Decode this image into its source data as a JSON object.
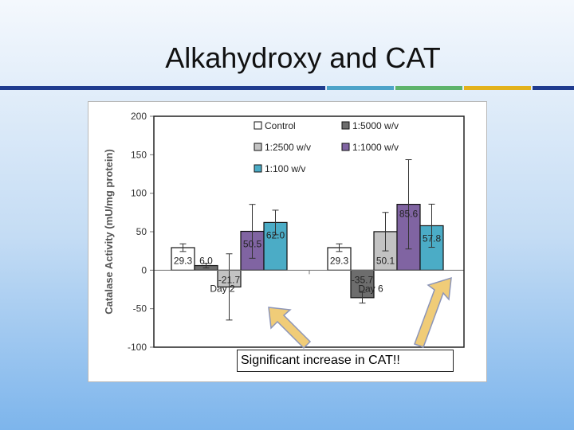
{
  "slide": {
    "title": "Alkahydroxy and CAT",
    "rule_colors": [
      "#1f3b8f",
      "#1f3b8f",
      "#4da3c9",
      "#5db36b",
      "#e3b21c",
      "#1f3b8f"
    ]
  },
  "callout": {
    "text": "Significant increase in  CAT!!",
    "arrow_fill": "#f0cc78",
    "arrow_stroke": "#8c95b8"
  },
  "chart_data": {
    "type": "bar",
    "title": "",
    "xlabel": "",
    "ylabel": "Catalase Activity (mU/mg protein)",
    "ylim": [
      -100,
      200
    ],
    "yticks": [
      -100,
      -50,
      0,
      50,
      100,
      150,
      200
    ],
    "grid": false,
    "legend_position": "top-center",
    "categories": [
      "Day 2",
      "Day 6"
    ],
    "series": [
      {
        "name": "Control",
        "color": "#ffffff",
        "values": [
          29.3,
          29.3
        ],
        "errors": [
          5,
          5
        ],
        "labels": [
          "29.3",
          "29.3"
        ]
      },
      {
        "name": "1:5000 w/v",
        "color": "#6d6d6d",
        "values": [
          6.0,
          -35.7
        ],
        "errors": [
          3,
          7
        ],
        "labels": [
          "6.0",
          "-35.7"
        ]
      },
      {
        "name": "1:2500 w/v",
        "color": "#c3c3c3",
        "values": [
          -21.7,
          50.1
        ],
        "errors": [
          43,
          25
        ],
        "labels": [
          "-21.7",
          "50.1"
        ]
      },
      {
        "name": "1:1000 w/v",
        "color": "#8064a2",
        "values": [
          50.5,
          85.6
        ],
        "errors": [
          35,
          58
        ],
        "labels": [
          "50.5",
          "85.6"
        ]
      },
      {
        "name": "1:100 w/v",
        "color": "#4bacc6",
        "values": [
          62.0,
          57.8
        ],
        "errors": [
          16,
          28
        ],
        "labels": [
          "62.0",
          "57.8"
        ]
      }
    ]
  }
}
